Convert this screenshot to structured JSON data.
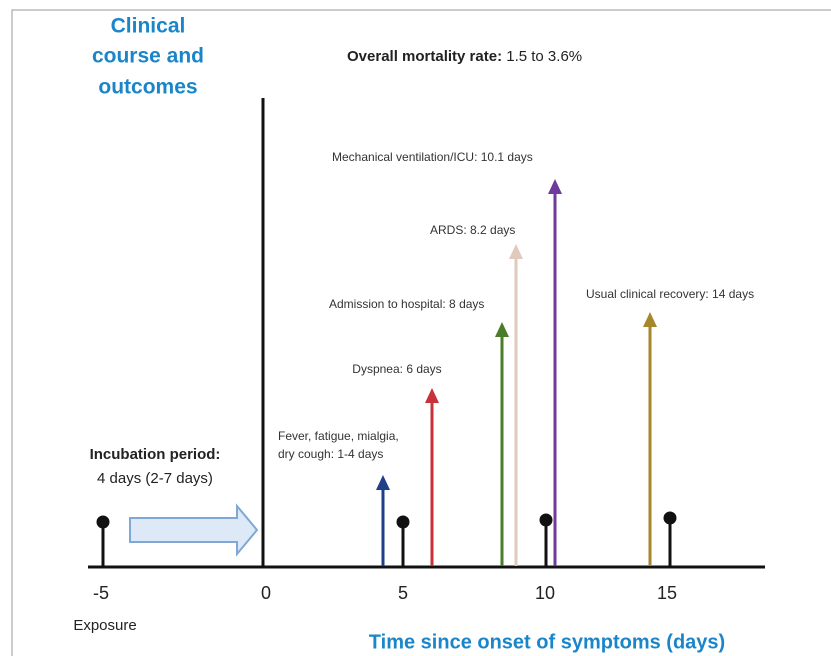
{
  "title": [
    "Clinical",
    "course and",
    "outcomes"
  ],
  "mortality": {
    "label": "Overall mortality rate:",
    "value": "1.5 to 3.6%"
  },
  "incubation": {
    "label": "Incubation period:",
    "value": "4 days (2-7 days)"
  },
  "events": [
    {
      "lines": [
        "Fever, fatigue, mialgia,",
        "dry cough: 1-4 days"
      ]
    },
    {
      "lines": [
        "Dyspnea: 6 days"
      ]
    },
    {
      "lines": [
        "Admission to hospital: 8 days"
      ]
    },
    {
      "lines": [
        "ARDS: 8.2 days"
      ]
    },
    {
      "lines": [
        "Mechanical ventilation/ICU: 10.1 days"
      ]
    },
    {
      "lines": [
        "Usual clinical recovery: 14 days"
      ]
    }
  ],
  "axis": {
    "ticks": [
      "-5",
      "0",
      "5",
      "10",
      "15"
    ],
    "exposure": "Exposure",
    "title": "Time since onset of symptoms (days)"
  }
}
